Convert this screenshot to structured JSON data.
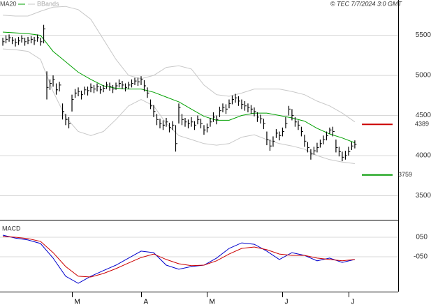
{
  "chart_data": [
    {
      "type": "ohlc",
      "credit": "© TEC 7/7/2024 3:0 GMT",
      "categories": [
        null,
        null,
        null,
        null,
        null,
        null,
        null,
        null,
        null,
        null,
        null,
        null,
        null,
        null,
        null,
        null,
        null,
        null,
        null,
        null,
        null,
        null,
        "M",
        null,
        null,
        null,
        null,
        null,
        null,
        null,
        null,
        null,
        null,
        null,
        null,
        null,
        null,
        null,
        null,
        null,
        null,
        null,
        null,
        null,
        "A",
        null,
        null,
        null,
        null,
        null,
        null,
        null,
        null,
        null,
        null,
        null,
        null,
        null,
        null,
        null,
        null,
        null,
        null,
        null,
        null,
        "M",
        null,
        null,
        null,
        null,
        null,
        null,
        null,
        null,
        null,
        null,
        null,
        null,
        null,
        null,
        null,
        null,
        null,
        null,
        null,
        null,
        null,
        null,
        null,
        "J",
        null,
        null,
        null,
        null,
        null,
        null,
        null,
        null,
        null,
        null,
        null,
        null,
        null,
        null,
        null,
        null,
        null,
        null,
        null,
        null,
        "J",
        null,
        null
      ],
      "high": [
        5470,
        5500,
        5510,
        5480,
        5460,
        5480,
        5500,
        5470,
        5480,
        5490,
        5480,
        5510,
        5470,
        5630,
        5050,
        4950,
        5000,
        4900,
        4920,
        4650,
        4520,
        4480,
        4760,
        4830,
        4850,
        4810,
        4860,
        4860,
        4900,
        4880,
        4900,
        4870,
        4880,
        4920,
        4910,
        4880,
        4910,
        4950,
        4930,
        4900,
        4920,
        4950,
        4970,
        4970,
        4990,
        4940,
        4850,
        4700,
        4630,
        4520,
        4460,
        4440,
        4470,
        4410,
        4430,
        4380,
        4650,
        4520,
        4470,
        4450,
        4480,
        4430,
        4500,
        4460,
        4380,
        4400,
        4470,
        4540,
        4500,
        4610,
        4650,
        4640,
        4700,
        4750,
        4770,
        4740,
        4700,
        4680,
        4650,
        4630,
        4600,
        4540,
        4510,
        4460,
        4300,
        4200,
        4240,
        4330,
        4300,
        4350,
        4480,
        4620,
        4580,
        4480,
        4440,
        4360,
        4260,
        4170,
        4080,
        4110,
        4160,
        4200,
        4250,
        4300,
        4350,
        4360,
        4200,
        4110,
        4050,
        4060,
        4110,
        4170,
        4190
      ],
      "low": [
        5370,
        5400,
        5420,
        5390,
        5360,
        5380,
        5410,
        5370,
        5390,
        5400,
        5380,
        5420,
        5370,
        5400,
        4700,
        4820,
        4860,
        4760,
        4800,
        4450,
        4380,
        4340,
        4550,
        4720,
        4740,
        4700,
        4760,
        4750,
        4790,
        4780,
        4800,
        4770,
        4790,
        4830,
        4810,
        4780,
        4820,
        4850,
        4830,
        4800,
        4830,
        4850,
        4880,
        4870,
        4880,
        4800,
        4720,
        4580,
        4480,
        4380,
        4340,
        4320,
        4360,
        4290,
        4320,
        4050,
        4400,
        4380,
        4360,
        4340,
        4360,
        4320,
        4390,
        4340,
        4260,
        4290,
        4360,
        4420,
        4390,
        4480,
        4540,
        4520,
        4590,
        4640,
        4660,
        4620,
        4580,
        4560,
        4540,
        4520,
        4490,
        4420,
        4400,
        4330,
        4130,
        4060,
        4110,
        4220,
        4190,
        4240,
        4340,
        4500,
        4440,
        4360,
        4320,
        4240,
        4110,
        4040,
        3950,
        4010,
        4040,
        4100,
        4140,
        4190,
        4270,
        4240,
        4040,
        3990,
        3930,
        3950,
        4000,
        4070,
        4090
      ],
      "close": [
        5420,
        5450,
        5470,
        5440,
        5410,
        5430,
        5460,
        5420,
        5440,
        5450,
        5430,
        5470,
        5420,
        5580,
        4850,
        4900,
        4950,
        4820,
        4880,
        4550,
        4450,
        4400,
        4700,
        4780,
        4800,
        4760,
        4820,
        4810,
        4850,
        4830,
        4860,
        4820,
        4840,
        4880,
        4860,
        4830,
        4870,
        4900,
        4880,
        4850,
        4880,
        4900,
        4930,
        4920,
        4950,
        4870,
        4780,
        4620,
        4550,
        4450,
        4400,
        4380,
        4420,
        4350,
        4380,
        4150,
        4600,
        4450,
        4420,
        4400,
        4420,
        4380,
        4450,
        4400,
        4320,
        4350,
        4420,
        4480,
        4450,
        4560,
        4600,
        4580,
        4650,
        4700,
        4720,
        4680,
        4640,
        4620,
        4600,
        4580,
        4550,
        4480,
        4460,
        4400,
        4200,
        4120,
        4180,
        4280,
        4250,
        4300,
        4400,
        4580,
        4500,
        4420,
        4380,
        4300,
        4180,
        4100,
        4020,
        4060,
        4100,
        4150,
        4200,
        4250,
        4320,
        4300,
        4100,
        4050,
        3980,
        4000,
        4050,
        4120,
        4140
      ],
      "color": "#000000",
      "overlays": [
        {
          "name": "MA20",
          "color": "#00a000",
          "x": [
            0,
            4,
            8,
            12,
            16,
            20,
            24,
            28,
            32,
            36,
            40,
            44,
            48,
            52,
            56,
            60,
            64,
            68,
            72,
            76,
            80,
            84,
            88,
            92,
            96,
            100,
            104,
            108,
            112
          ],
          "values": [
            5540,
            5530,
            5520,
            5500,
            5300,
            5170,
            5040,
            4950,
            4870,
            4840,
            4830,
            4830,
            4790,
            4730,
            4670,
            4580,
            4490,
            4440,
            4440,
            4500,
            4530,
            4530,
            4500,
            4470,
            4430,
            4340,
            4270,
            4220,
            4160
          ]
        },
        {
          "name": "BBands",
          "color": "#c8c8c8",
          "x": [
            0,
            4,
            8,
            12,
            16,
            20,
            24,
            28,
            32,
            36,
            40,
            44,
            48,
            52,
            56,
            60,
            64,
            68,
            72,
            76,
            80,
            84,
            88,
            92,
            96,
            100,
            104,
            108,
            112
          ],
          "upper": [
            5750,
            5740,
            5740,
            5800,
            5850,
            5860,
            5820,
            5700,
            5450,
            5200,
            5000,
            4960,
            5000,
            5100,
            5120,
            5080,
            4880,
            4760,
            4740,
            4780,
            4830,
            4830,
            4830,
            4800,
            4760,
            4680,
            4620,
            4530,
            4420
          ],
          "lower": [
            5330,
            5320,
            5300,
            5200,
            4800,
            4480,
            4300,
            4250,
            4300,
            4450,
            4620,
            4700,
            4620,
            4400,
            4250,
            4200,
            4150,
            4130,
            4150,
            4230,
            4260,
            4200,
            4150,
            4120,
            4080,
            4000,
            3950,
            3920,
            3900
          ]
        }
      ],
      "levels": [
        {
          "value": 4389,
          "color": "#cc0000"
        },
        {
          "value": 3759,
          "color": "#009900"
        }
      ],
      "xlim": [
        -0.9,
        125.8
      ],
      "ylim": [
        3200,
        5940
      ],
      "yticks": [
        3500,
        4000,
        4500,
        5000,
        5500
      ],
      "grid": true
    },
    {
      "type": "line",
      "title": "MACD",
      "x": [
        0,
        4,
        8,
        12,
        16,
        20,
        24,
        28,
        32,
        36,
        40,
        44,
        48,
        52,
        56,
        60,
        64,
        68,
        72,
        76,
        80,
        84,
        88,
        92,
        96,
        100,
        104,
        108,
        112
      ],
      "series": [
        {
          "color": "#0000cc",
          "values": [
            61,
            46,
            36,
            18,
            -57,
            -150,
            -186,
            -150,
            -121,
            -93,
            -57,
            -21,
            -29,
            -93,
            -114,
            -100,
            -93,
            -57,
            -7,
            21,
            14,
            -21,
            -64,
            -29,
            -43,
            -71,
            -57,
            -79,
            -64
          ]
        },
        {
          "color": "#cc0000",
          "values": [
            54,
            50,
            43,
            29,
            -29,
            -100,
            -150,
            -154,
            -136,
            -111,
            -82,
            -54,
            -36,
            -64,
            -86,
            -96,
            -93,
            -71,
            -36,
            -7,
            0,
            -14,
            -36,
            -43,
            -43,
            -57,
            -64,
            -71,
            -64
          ]
        }
      ],
      "xlim": [
        -0.9,
        125.8
      ],
      "ylim": [
        -229,
        136
      ],
      "yticks": [
        {
          "value": 50,
          "label": "050"
        },
        {
          "value": -50,
          "label": "-050"
        }
      ],
      "grid": true
    }
  ]
}
